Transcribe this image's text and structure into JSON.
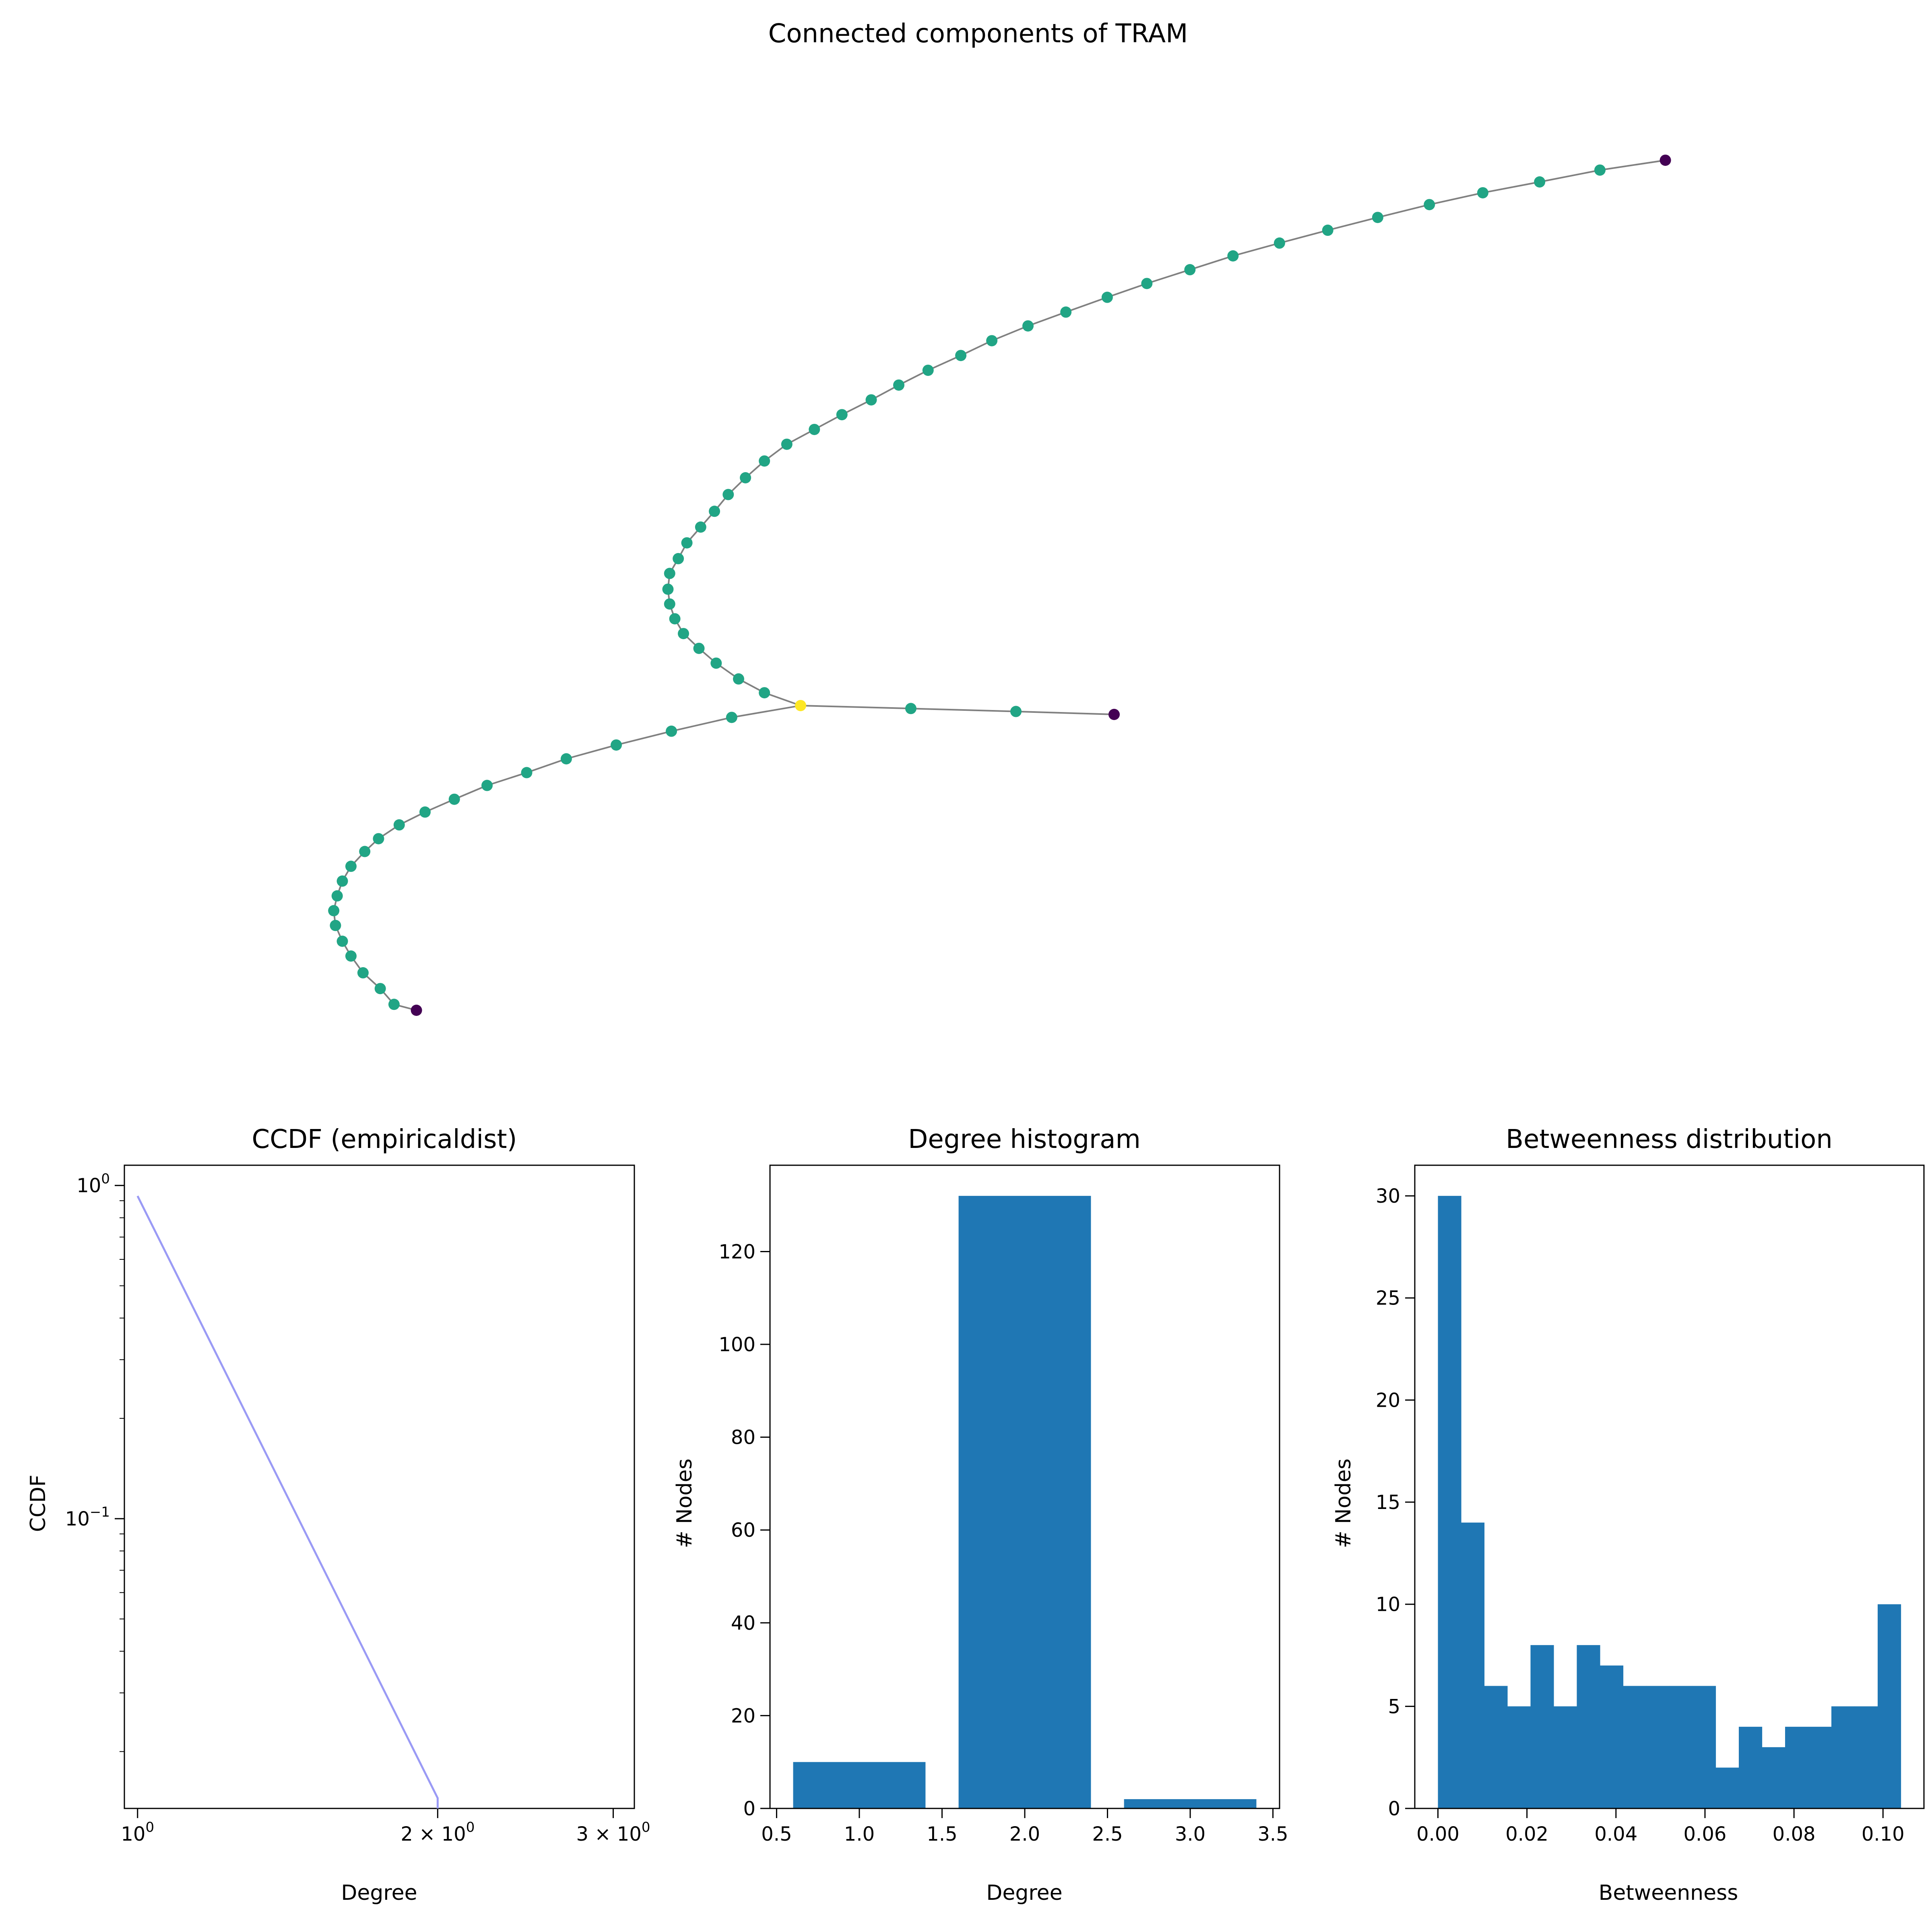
{
  "figure": {
    "title": "Connected components of TRAM"
  },
  "colors": {
    "edge": "#808080",
    "node_degree_1": "#440154",
    "node_degree_2": "#21a585",
    "node_degree_3": "#fde725",
    "ccdf_line": "#9a9af5",
    "bar": "#1f77b4"
  },
  "chart_data": [
    {
      "type": "network",
      "title": "Connected components of TRAM",
      "axes_visible": false,
      "nodes": [
        [
          0.92,
          0.138
        ],
        [
          0.882,
          0.148
        ],
        [
          0.847,
          0.16
        ],
        [
          0.814,
          0.171
        ],
        [
          0.783,
          0.183
        ],
        [
          0.753,
          0.196
        ],
        [
          0.724,
          0.209
        ],
        [
          0.696,
          0.222
        ],
        [
          0.669,
          0.235
        ],
        [
          0.644,
          0.249
        ],
        [
          0.619,
          0.263
        ],
        [
          0.596,
          0.277
        ],
        [
          0.572,
          0.292
        ],
        [
          0.55,
          0.306
        ],
        [
          0.529,
          0.321
        ],
        [
          0.511,
          0.336
        ],
        [
          0.492,
          0.351
        ],
        [
          0.475,
          0.366
        ],
        [
          0.459,
          0.381
        ],
        [
          0.442,
          0.396
        ],
        [
          0.426,
          0.411
        ],
        [
          0.41,
          0.426
        ],
        [
          0.397,
          0.443
        ],
        [
          0.386,
          0.46
        ],
        [
          0.376,
          0.477
        ],
        [
          0.368,
          0.494
        ],
        [
          0.36,
          0.51
        ],
        [
          0.352,
          0.526
        ],
        [
          0.347,
          0.542
        ],
        [
          0.342,
          0.557
        ],
        [
          0.341,
          0.573
        ],
        [
          0.342,
          0.588
        ],
        [
          0.345,
          0.603
        ],
        [
          0.35,
          0.618
        ],
        [
          0.359,
          0.633
        ],
        [
          0.369,
          0.648
        ],
        [
          0.382,
          0.664
        ],
        [
          0.397,
          0.678
        ],
        [
          0.418,
          0.691
        ],
        [
          0.482,
          0.694
        ],
        [
          0.543,
          0.697
        ],
        [
          0.6,
          0.7
        ],
        [
          0.378,
          0.703
        ],
        [
          0.343,
          0.717
        ],
        [
          0.311,
          0.731
        ],
        [
          0.282,
          0.745
        ],
        [
          0.259,
          0.759
        ],
        [
          0.236,
          0.772
        ],
        [
          0.217,
          0.786
        ],
        [
          0.2,
          0.799
        ],
        [
          0.185,
          0.812
        ],
        [
          0.173,
          0.826
        ],
        [
          0.165,
          0.839
        ],
        [
          0.157,
          0.854
        ],
        [
          0.152,
          0.869
        ],
        [
          0.149,
          0.884
        ],
        [
          0.147,
          0.899
        ],
        [
          0.148,
          0.914
        ],
        [
          0.152,
          0.93
        ],
        [
          0.157,
          0.945
        ],
        [
          0.164,
          0.962
        ],
        [
          0.174,
          0.978
        ],
        [
          0.182,
          0.994
        ],
        [
          0.195,
          1.0
        ]
      ],
      "degree": [
        1,
        2,
        2,
        2,
        2,
        2,
        2,
        2,
        2,
        2,
        2,
        2,
        2,
        2,
        2,
        2,
        2,
        2,
        2,
        2,
        2,
        2,
        2,
        2,
        2,
        2,
        2,
        2,
        2,
        2,
        2,
        2,
        2,
        2,
        2,
        2,
        2,
        2,
        3,
        2,
        2,
        1,
        2,
        2,
        2,
        2,
        2,
        2,
        2,
        2,
        2,
        2,
        2,
        2,
        2,
        2,
        2,
        2,
        2,
        2,
        2,
        2,
        2,
        1
      ],
      "edges": [
        [
          0,
          1
        ],
        [
          1,
          2
        ],
        [
          2,
          3
        ],
        [
          3,
          4
        ],
        [
          4,
          5
        ],
        [
          5,
          6
        ],
        [
          6,
          7
        ],
        [
          7,
          8
        ],
        [
          8,
          9
        ],
        [
          9,
          10
        ],
        [
          10,
          11
        ],
        [
          11,
          12
        ],
        [
          12,
          13
        ],
        [
          13,
          14
        ],
        [
          14,
          15
        ],
        [
          15,
          16
        ],
        [
          16,
          17
        ],
        [
          17,
          18
        ],
        [
          18,
          19
        ],
        [
          19,
          20
        ],
        [
          20,
          21
        ],
        [
          21,
          22
        ],
        [
          22,
          23
        ],
        [
          23,
          24
        ],
        [
          24,
          25
        ],
        [
          25,
          26
        ],
        [
          26,
          27
        ],
        [
          27,
          28
        ],
        [
          28,
          29
        ],
        [
          29,
          30
        ],
        [
          30,
          31
        ],
        [
          31,
          32
        ],
        [
          32,
          33
        ],
        [
          33,
          34
        ],
        [
          34,
          35
        ],
        [
          35,
          36
        ],
        [
          36,
          37
        ],
        [
          37,
          38
        ],
        [
          38,
          39
        ],
        [
          39,
          40
        ],
        [
          40,
          41
        ],
        [
          38,
          42
        ],
        [
          42,
          43
        ],
        [
          43,
          44
        ],
        [
          44,
          45
        ],
        [
          45,
          46
        ],
        [
          46,
          47
        ],
        [
          47,
          48
        ],
        [
          48,
          49
        ],
        [
          49,
          50
        ],
        [
          50,
          51
        ],
        [
          51,
          52
        ],
        [
          52,
          53
        ],
        [
          53,
          54
        ],
        [
          54,
          55
        ],
        [
          55,
          56
        ],
        [
          56,
          57
        ],
        [
          57,
          58
        ],
        [
          58,
          59
        ],
        [
          59,
          60
        ],
        [
          60,
          61
        ],
        [
          61,
          62
        ],
        [
          62,
          63
        ]
      ]
    },
    {
      "type": "line",
      "title": "CCDF (empiricaldist)",
      "xlabel": "Degree",
      "ylabel": "CCDF",
      "xscale": "log",
      "yscale": "log",
      "xlim": [
        0.97,
        3.15
      ],
      "ylim": [
        0.0135,
        1.15
      ],
      "x_ticks": [
        {
          "value": 1,
          "base": "10",
          "exp": "0"
        },
        {
          "value": 2,
          "base": "2 × 10",
          "exp": "0"
        },
        {
          "value": 3,
          "base": "3 × 10",
          "exp": "0"
        }
      ],
      "y_ticks": [
        {
          "value": 1,
          "base": "10",
          "exp": "0"
        },
        {
          "value": 0.1,
          "base": "10",
          "exp": "−1"
        }
      ],
      "x": [
        1,
        2,
        2
      ],
      "y": [
        0.93,
        0.0145,
        0.0135
      ],
      "grid": false
    },
    {
      "type": "bar",
      "title": "Degree histogram",
      "xlabel": "Degree",
      "ylabel": "# Nodes",
      "xlim": [
        0.46,
        3.54
      ],
      "ylim": [
        0,
        138.6
      ],
      "x_ticks": [
        "0.5",
        "1.0",
        "1.5",
        "2.0",
        "2.5",
        "3.0",
        "3.5"
      ],
      "y_ticks": [
        "0",
        "20",
        "40",
        "60",
        "80",
        "100",
        "120"
      ],
      "categories": [
        1,
        2,
        3
      ],
      "values": [
        10,
        132,
        2
      ],
      "bar_width": 0.8,
      "grid": false
    },
    {
      "type": "bar",
      "title": "Betweenness distribution",
      "xlabel": "Betweenness",
      "ylabel": "# Nodes",
      "xlim": [
        -0.0052,
        0.1092
      ],
      "ylim": [
        0,
        31.5
      ],
      "x_ticks": [
        "0.00",
        "0.02",
        "0.04",
        "0.06",
        "0.08",
        "0.10"
      ],
      "y_ticks": [
        "0",
        "5",
        "10",
        "15",
        "20",
        "25",
        "30"
      ],
      "bin_start": 0,
      "bin_width": 0.0052,
      "values": [
        30,
        14,
        6,
        5,
        8,
        5,
        8,
        7,
        6,
        6,
        6,
        6,
        2,
        4,
        3,
        4,
        4,
        5,
        5,
        10
      ],
      "grid": false
    }
  ]
}
